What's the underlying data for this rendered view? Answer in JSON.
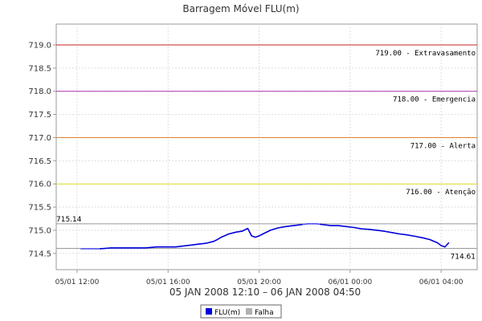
{
  "chart_data": {
    "type": "line",
    "title": "Barragem Móvel FLU(m)",
    "xlabel": "05 JAN 2008 12:10 – 06 JAN 2008 04:50",
    "ylabel": "",
    "ylim": [
      714.15,
      719.45
    ],
    "y_ticks": [
      "714.5",
      "715.0",
      "715.5",
      "716.0",
      "716.5",
      "717.0",
      "717.5",
      "718.0",
      "718.5",
      "719.0"
    ],
    "x_ticks": [
      {
        "label": "05/01 12:00",
        "t": 0
      },
      {
        "label": "05/01 16:00",
        "t": 240
      },
      {
        "label": "05/01 20:00",
        "t": 480
      },
      {
        "label": "06/01 00:00",
        "t": 720
      },
      {
        "label": "06/01 04:00",
        "t": 960
      }
    ],
    "x_range_minutes": [
      -55,
      1055
    ],
    "grid": true,
    "thresholds": [
      {
        "value": 719.0,
        "label": "719.00 - Extravasamento",
        "color": "#cc2222"
      },
      {
        "value": 718.0,
        "label": "718.00 - Emergencia",
        "color": "#aa33aa"
      },
      {
        "value": 717.0,
        "label": "717.00 - Alerta",
        "color": "#e08030"
      },
      {
        "value": 716.0,
        "label": "716.00 - Atenção",
        "color": "#dddd22"
      }
    ],
    "markers": [
      {
        "value": 715.14,
        "label": "715.14",
        "color": "#999999"
      },
      {
        "value": 714.61,
        "label": "714.61",
        "color": "#999999"
      }
    ],
    "series": [
      {
        "name": "FLU(m)",
        "color": "#0000dd",
        "x": [
          10,
          30,
          60,
          90,
          120,
          150,
          170,
          180,
          210,
          240,
          260,
          280,
          300,
          320,
          340,
          360,
          370,
          380,
          400,
          420,
          435,
          450,
          460,
          470,
          480,
          490,
          510,
          530,
          550,
          570,
          590,
          610,
          630,
          650,
          670,
          690,
          710,
          730,
          750,
          770,
          790,
          810,
          830,
          850,
          870,
          890,
          910,
          930,
          950,
          960,
          970,
          980
        ],
        "values": [
          714.6,
          714.6,
          714.6,
          714.62,
          714.62,
          714.62,
          714.62,
          714.62,
          714.64,
          714.64,
          714.64,
          714.66,
          714.68,
          714.7,
          714.72,
          714.76,
          714.8,
          714.85,
          714.92,
          714.96,
          714.98,
          715.04,
          714.88,
          714.85,
          714.88,
          714.92,
          715.0,
          715.05,
          715.08,
          715.1,
          715.12,
          715.14,
          715.14,
          715.12,
          715.1,
          715.1,
          715.08,
          715.06,
          715.03,
          715.02,
          715.0,
          714.98,
          714.95,
          714.92,
          714.9,
          714.87,
          714.84,
          714.8,
          714.73,
          714.67,
          714.64,
          714.73
        ]
      }
    ],
    "failure_segments": [
      [
        10,
        60
      ],
      [
        595,
        640
      ]
    ],
    "legend": {
      "position": "bottom",
      "entries": [
        {
          "label": "FLU(m)",
          "color": "#0000dd"
        },
        {
          "label": "Falha",
          "color": "#b0b0b0"
        }
      ]
    }
  }
}
